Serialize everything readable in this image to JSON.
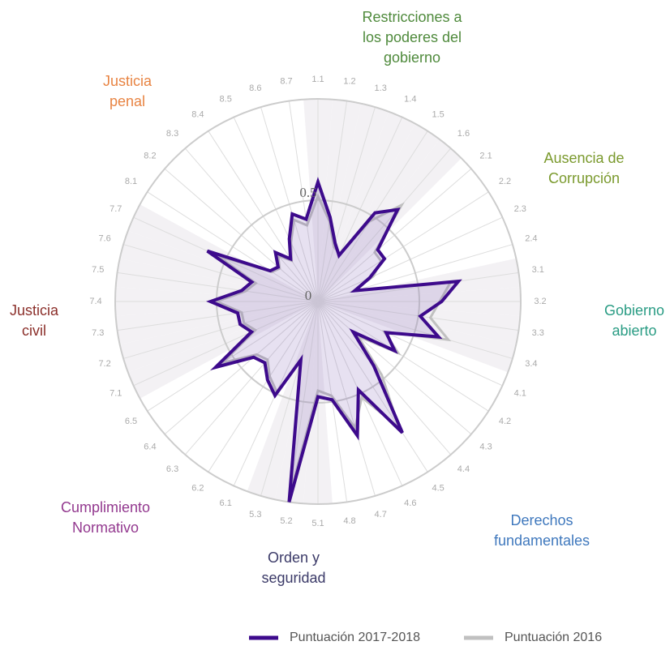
{
  "chart_data": {
    "type": "radar",
    "categories": [
      "1.1",
      "1.2",
      "1.3",
      "1.4",
      "1.5",
      "1.6",
      "2.1",
      "2.2",
      "2.3",
      "2.4",
      "3.1",
      "3.2",
      "3.3",
      "3.4",
      "4.1",
      "4.2",
      "4.3",
      "4.4",
      "4.5",
      "4.6",
      "4.7",
      "4.8",
      "5.1",
      "5.2",
      "5.3",
      "6.1",
      "6.2",
      "6.3",
      "6.4",
      "6.5",
      "7.1",
      "7.2",
      "7.3",
      "7.4",
      "7.5",
      "7.6",
      "7.7",
      "8.1",
      "8.2",
      "8.3",
      "8.4",
      "8.5",
      "8.6",
      "8.7"
    ],
    "groups": [
      {
        "label": [
          "Restricciones a",
          "los poderes del",
          "gobierno"
        ],
        "color": "#4f8a3c"
      },
      {
        "label": [
          "Ausencia de",
          "Corrupción"
        ],
        "color": "#7b9a2e"
      },
      {
        "label": [
          "Gobierno",
          "abierto"
        ],
        "color": "#2a9c84"
      },
      {
        "label": [
          "Derechos",
          "fundamentales"
        ],
        "color": "#3f78bd"
      },
      {
        "label": [
          "Orden y",
          "seguridad"
        ],
        "color": "#3b3a68"
      },
      {
        "label": [
          "Cumplimiento",
          "Normativo"
        ],
        "color": "#93398f"
      },
      {
        "label": [
          "Justicia",
          "civil"
        ],
        "color": "#8b2f2a"
      },
      {
        "label": [
          "Justicia",
          "penal"
        ],
        "color": "#e88443"
      }
    ],
    "series": [
      {
        "name": "Puntuación 2016",
        "color": "#c0c0c0",
        "values": [
          0.52,
          0.4,
          0.28,
          0.26,
          0.47,
          0.63,
          0.37,
          0.37,
          0.3,
          0.18,
          0.66,
          0.6,
          0.56,
          0.67,
          0.36,
          0.47,
          0.26,
          0.48,
          0.74,
          0.52,
          0.65,
          0.47,
          0.44,
          0.95,
          0.31,
          0.49,
          0.44,
          0.38,
          0.4,
          0.56,
          0.34,
          0.38,
          0.38,
          0.5,
          0.36,
          0.32,
          0.55,
          0.27,
          0.25,
          0.3,
          0.24,
          0.32,
          0.42,
          0.38
        ]
      },
      {
        "name": "Puntuación 2017-2018",
        "color": "#3d0a8c",
        "values": [
          0.59,
          0.42,
          0.3,
          0.25,
          0.52,
          0.6,
          0.39,
          0.39,
          0.28,
          0.19,
          0.7,
          0.61,
          0.51,
          0.62,
          0.37,
          0.45,
          0.23,
          0.42,
          0.77,
          0.48,
          0.69,
          0.49,
          0.47,
          1.0,
          0.3,
          0.51,
          0.46,
          0.4,
          0.42,
          0.6,
          0.36,
          0.4,
          0.4,
          0.53,
          0.38,
          0.34,
          0.6,
          0.28,
          0.26,
          0.32,
          0.25,
          0.34,
          0.45,
          0.41
        ]
      }
    ],
    "rlim": [
      0,
      1
    ],
    "rticks": [
      0,
      0.5
    ]
  }
}
